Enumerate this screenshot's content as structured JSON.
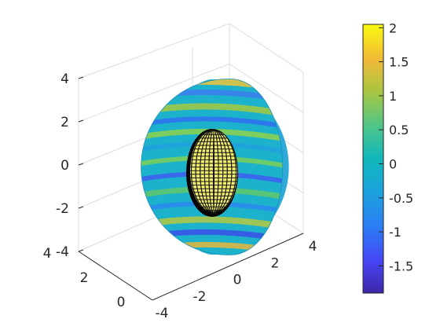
{
  "chart_data": {
    "type": "surface3d",
    "title": "",
    "xlabel": "",
    "ylabel": "",
    "zlabel": "",
    "x_ticks": [
      "-4",
      "-2",
      "0",
      "2",
      "4"
    ],
    "y_ticks": [
      "0",
      "2",
      "4"
    ],
    "z_ticks": [
      "-4",
      "-2",
      "0",
      "2",
      "4"
    ],
    "xlim": [
      -4,
      4
    ],
    "ylim": [
      0,
      4
    ],
    "zlim": [
      -4,
      4
    ],
    "grid": true,
    "colormap": "parula",
    "clim": [
      -1.9,
      2.05
    ],
    "colorbar": {
      "position": "right",
      "ticks": [
        "2",
        "1.5",
        "1",
        "0.5",
        "0",
        "-0.5",
        "-1",
        "-1.5"
      ],
      "tick_values": [
        2,
        1.5,
        1,
        0.5,
        0,
        -0.5,
        -1,
        -1.5
      ]
    },
    "objects": [
      {
        "kind": "half-disk slab, color-mapped field",
        "radius": 4
      },
      {
        "kind": "ellipsoid wireframe mesh",
        "color": "#000000",
        "face_color": "#f2f26a"
      }
    ]
  }
}
